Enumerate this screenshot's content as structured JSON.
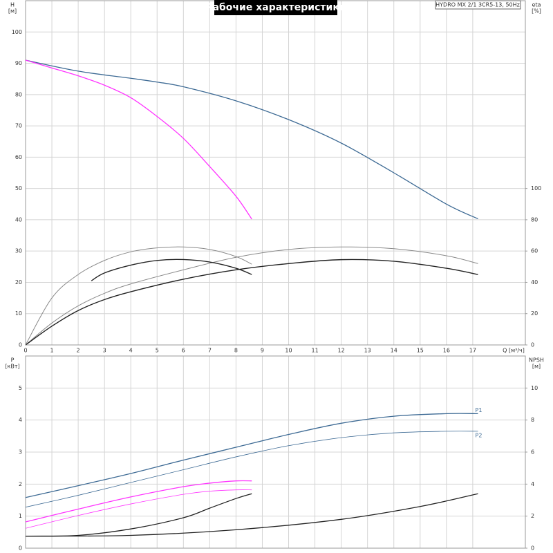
{
  "chart_data": [
    {
      "type": "line",
      "title": "Рабочие характеристики",
      "model": "HYDRO MX 2/1 3CR5-13, 50Hz",
      "ylabel": [
        "H",
        "[м]"
      ],
      "y2label": [
        "eta",
        "[%]"
      ],
      "xlabel": "Q [м³/ч]",
      "xlim": [
        0,
        19
      ],
      "xticks": [
        0,
        1,
        2,
        3,
        4,
        5,
        6,
        7,
        8,
        9,
        10,
        11,
        12,
        13,
        14,
        15,
        16,
        17
      ],
      "ylim": [
        0,
        110
      ],
      "yticks": [
        0,
        10,
        20,
        30,
        40,
        50,
        60,
        70,
        80,
        90,
        100
      ],
      "y2lim": [
        0,
        220
      ],
      "y2ticks": [
        0,
        20,
        40,
        60,
        80,
        100
      ],
      "grid": true,
      "series": [
        {
          "color": "#3d6a94",
          "width": 1.3,
          "x": [
            0,
            2,
            4,
            5,
            6,
            8,
            10,
            12,
            14,
            16,
            17.2
          ],
          "values": [
            91,
            87.5,
            85.2,
            84,
            82.5,
            78,
            72,
            64.5,
            55,
            45,
            40.3
          ]
        },
        {
          "color": "#ff33ff",
          "width": 1.3,
          "x": [
            0,
            1,
            2,
            3,
            4,
            5,
            6,
            7,
            8,
            8.6
          ],
          "values": [
            91,
            88.5,
            86,
            83,
            79,
            73,
            66,
            57,
            47.5,
            40.2
          ]
        },
        {
          "color": "#888888",
          "width": 1,
          "axis": "y2",
          "x": [
            0,
            1,
            2,
            3,
            4,
            6,
            8,
            10,
            12,
            14,
            16,
            17.2
          ],
          "values": [
            0,
            14,
            25,
            33,
            39,
            48,
            56,
            61,
            62.6,
            61.5,
            57,
            52
          ]
        },
        {
          "color": "#222222",
          "width": 1.4,
          "axis": "y2",
          "x": [
            0,
            1,
            2,
            3,
            4,
            6,
            8,
            10,
            12,
            14,
            16,
            17.2
          ],
          "values": [
            0,
            12,
            22,
            29,
            34,
            42,
            48,
            52,
            54.5,
            53.5,
            49,
            45
          ]
        },
        {
          "color": "#888888",
          "width": 1,
          "axis": "y2",
          "x": [
            0,
            1,
            2,
            3,
            4,
            5,
            6,
            7,
            8,
            8.6
          ],
          "values": [
            0,
            30,
            45,
            54,
            59.5,
            62,
            62.6,
            61,
            56.5,
            51.6
          ]
        },
        {
          "color": "#222222",
          "width": 1.4,
          "axis": "y2",
          "x": [
            2.5,
            3,
            4,
            5,
            6,
            7,
            8,
            8.6
          ],
          "values": [
            41,
            46,
            51,
            54,
            54.6,
            53,
            49,
            45
          ]
        }
      ]
    },
    {
      "type": "line",
      "ylabel": [
        "P",
        "[кВт]"
      ],
      "y2label": [
        "NPSH",
        "[м]"
      ],
      "xlim": [
        0,
        19
      ],
      "xticks": [
        0,
        1,
        2,
        3,
        4,
        5,
        6,
        7,
        8,
        9,
        10,
        11,
        12,
        13,
        14,
        15,
        16,
        17
      ],
      "ylim": [
        0,
        6
      ],
      "yticks": [
        0,
        1,
        2,
        3,
        4,
        5
      ],
      "y2lim": [
        0,
        12
      ],
      "y2ticks": [
        0,
        2,
        4,
        6,
        8,
        10
      ],
      "grid": true,
      "series": [
        {
          "label": "P1",
          "color": "#3d6a94",
          "width": 1.3,
          "x": [
            0,
            2,
            4,
            6,
            8,
            10,
            12,
            14,
            16,
            17.2
          ],
          "values": [
            1.58,
            1.95,
            2.33,
            2.75,
            3.15,
            3.55,
            3.9,
            4.12,
            4.2,
            4.2
          ]
        },
        {
          "label": "P2",
          "color": "#3d6a94",
          "width": 0.8,
          "x": [
            0,
            2,
            4,
            6,
            8,
            10,
            12,
            14,
            16,
            17.2
          ],
          "values": [
            1.28,
            1.65,
            2.05,
            2.45,
            2.85,
            3.2,
            3.45,
            3.6,
            3.65,
            3.65
          ]
        },
        {
          "color": "#ff33ff",
          "width": 1.3,
          "x": [
            0,
            2,
            4,
            6,
            7,
            8,
            8.6
          ],
          "values": [
            0.82,
            1.22,
            1.6,
            1.92,
            2.03,
            2.1,
            2.1
          ]
        },
        {
          "color": "#ff33ff",
          "width": 0.8,
          "x": [
            0,
            2,
            4,
            6,
            7,
            8,
            8.6
          ],
          "values": [
            0.62,
            1.02,
            1.38,
            1.68,
            1.78,
            1.82,
            1.82
          ]
        },
        {
          "color": "#222222",
          "width": 1.3,
          "axis": "y2",
          "x": [
            0,
            4,
            8,
            12,
            15,
            17.2
          ],
          "values": [
            0.75,
            0.8,
            1.15,
            1.8,
            2.6,
            3.4
          ]
        },
        {
          "color": "#222222",
          "width": 1.3,
          "axis": "y2",
          "x": [
            0,
            2,
            4,
            6,
            7,
            8,
            8.6
          ],
          "values": [
            0.75,
            0.8,
            1.2,
            1.9,
            2.5,
            3.1,
            3.4
          ]
        }
      ]
    }
  ]
}
